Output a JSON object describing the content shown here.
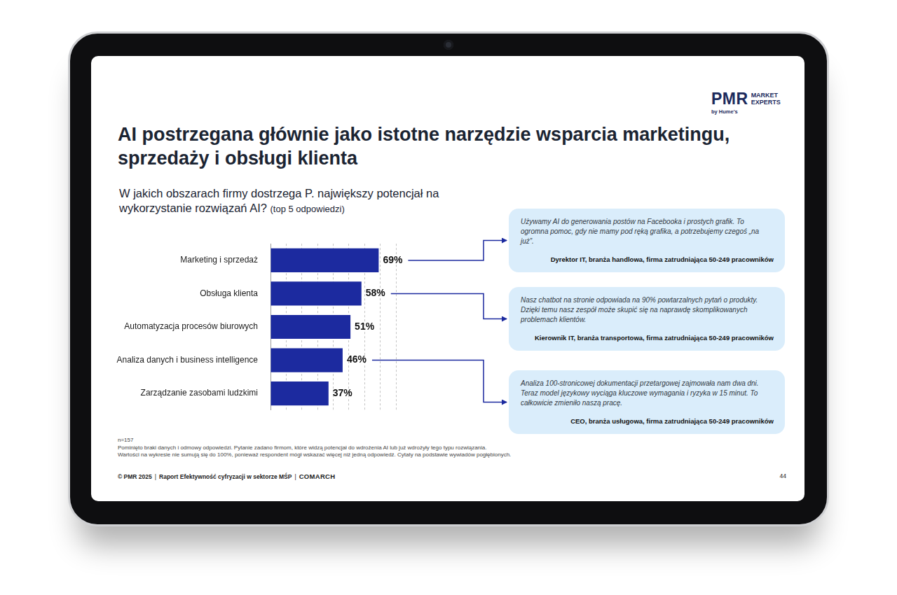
{
  "slide": {
    "logo": {
      "name": "PMR",
      "tagline": [
        "MARKET",
        "EXPERTS"
      ],
      "by": "by Hume's"
    },
    "title": "AI postrzegana głównie jako istotne narzędzie wsparcia marketingu, sprzedaży i obsługi klienta",
    "quotes": [
      {
        "category": "Marketing i sprzedaż",
        "text": "Używamy AI do generowania postów na Facebooka i prostych grafik. To ogromna pomoc, gdy nie mamy pod ręką grafika, a potrzebujemy czegoś „na już”.",
        "author": "Dyrektor IT, branża handlowa, firma zatrudniająca 50-249 pracowników"
      },
      {
        "category": "Obsługa klienta",
        "text": "Nasz chatbot na stronie odpowiada na 90% powtarzalnych pytań o produkty. Dzięki temu nasz zespół może skupić się na naprawdę skomplikowanych problemach klientów.",
        "author": "Kierownik IT, branża transportowa, firma zatrudniająca 50-249 pracowników"
      },
      {
        "category": "Analiza danych i business intelligence",
        "text": "Analiza 100-stronicowej dokumentacji przetargowej zajmowała nam dwa dni. Teraz model językowy wyciąga kluczowe wymagania i ryzyka w 15 minut. To całkowicie zmieniło naszą pracę.",
        "author": "CEO, branża usługowa, firma zatrudniająca 50-249 pracowników"
      }
    ],
    "notes": [
      "n=157",
      "Pominięto braki danych i odmowy odpowiedzi. Pytanie zadano firmom, które widzą potencjał do wdrożenia AI lub już wdrożyły tego typu rozwiązania.",
      "Wartości na wykresie nie sumują się do 100%, ponieważ respondent mógł wskazać więcej niż jedną odpowiedź. Cytaty na podstawie wywiadów pogłębionych."
    ],
    "footer": {
      "source": "© PMR 2025",
      "separator": "|",
      "report": "Raport Efektywność cyfryzacji w sektorze MŚP",
      "brand": "COMARCH",
      "page": "44"
    }
  },
  "chart_data": {
    "type": "bar",
    "orientation": "horizontal",
    "title": "W jakich obszarach firmy dostrzega P. największy potencjał na wykorzystanie rozwiązań AI?",
    "subtitle": "(top 5 odpowiedzi)",
    "categories": [
      "Marketing i sprzedaż",
      "Obsługa klienta",
      "Automatyzacja procesów biurowych",
      "Analiza danych i business intelligence",
      "Zarządzanie zasobami ludzkimi"
    ],
    "values": [
      69,
      58,
      51,
      46,
      37
    ],
    "value_labels": [
      "69%",
      "58%",
      "51%",
      "46%",
      "37%"
    ],
    "data_labels": true,
    "color": "#1c2a9f",
    "xlim": [
      0,
      80
    ],
    "xticks": [
      0,
      10,
      20,
      30,
      40,
      50,
      60,
      70,
      80
    ],
    "grid": true,
    "tick_labels": "y"
  }
}
